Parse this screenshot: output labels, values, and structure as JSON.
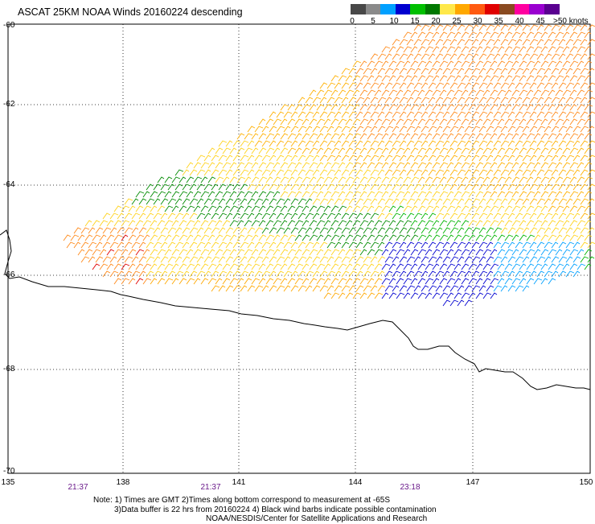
{
  "title": "ASCAT 25KM NOAA Winds 20160224 descending",
  "legend": {
    "swatches": [
      {
        "color": "#484848"
      },
      {
        "color": "#8a8a8a"
      },
      {
        "color": "#00a0ff"
      },
      {
        "color": "#0000d0"
      },
      {
        "color": "#00c000"
      },
      {
        "color": "#007800"
      },
      {
        "color": "#ffe84a"
      },
      {
        "color": "#ffa800"
      },
      {
        "color": "#ff5a10"
      },
      {
        "color": "#e00000"
      },
      {
        "color": "#8a4a20"
      },
      {
        "color": "#ff00a0"
      },
      {
        "color": "#9a00d0"
      },
      {
        "color": "#5a0090"
      }
    ],
    "labels": [
      "0",
      "5",
      "10",
      "15",
      "20",
      "25",
      "30",
      "35",
      "40",
      "45"
    ],
    "unit_label": ">50 knots"
  },
  "axes": {
    "lat_labels": [
      "-60",
      "-62",
      "-64",
      "-66",
      "-68",
      "-70"
    ],
    "lon_labels": [
      "135",
      "138",
      "141",
      "144",
      "147",
      "150"
    ]
  },
  "times": [
    "21:37",
    "21:37",
    "23:18"
  ],
  "notes": [
    "Note: 1) Times are GMT 2)Times along bottom correspond to measurement at -65S",
    "3)Data buffer is 22 hrs from 20160224 4) Black wind barbs indicate possible contamination",
    "NOAA/NESDIS/Center for Satellite Applications and Research"
  ]
}
